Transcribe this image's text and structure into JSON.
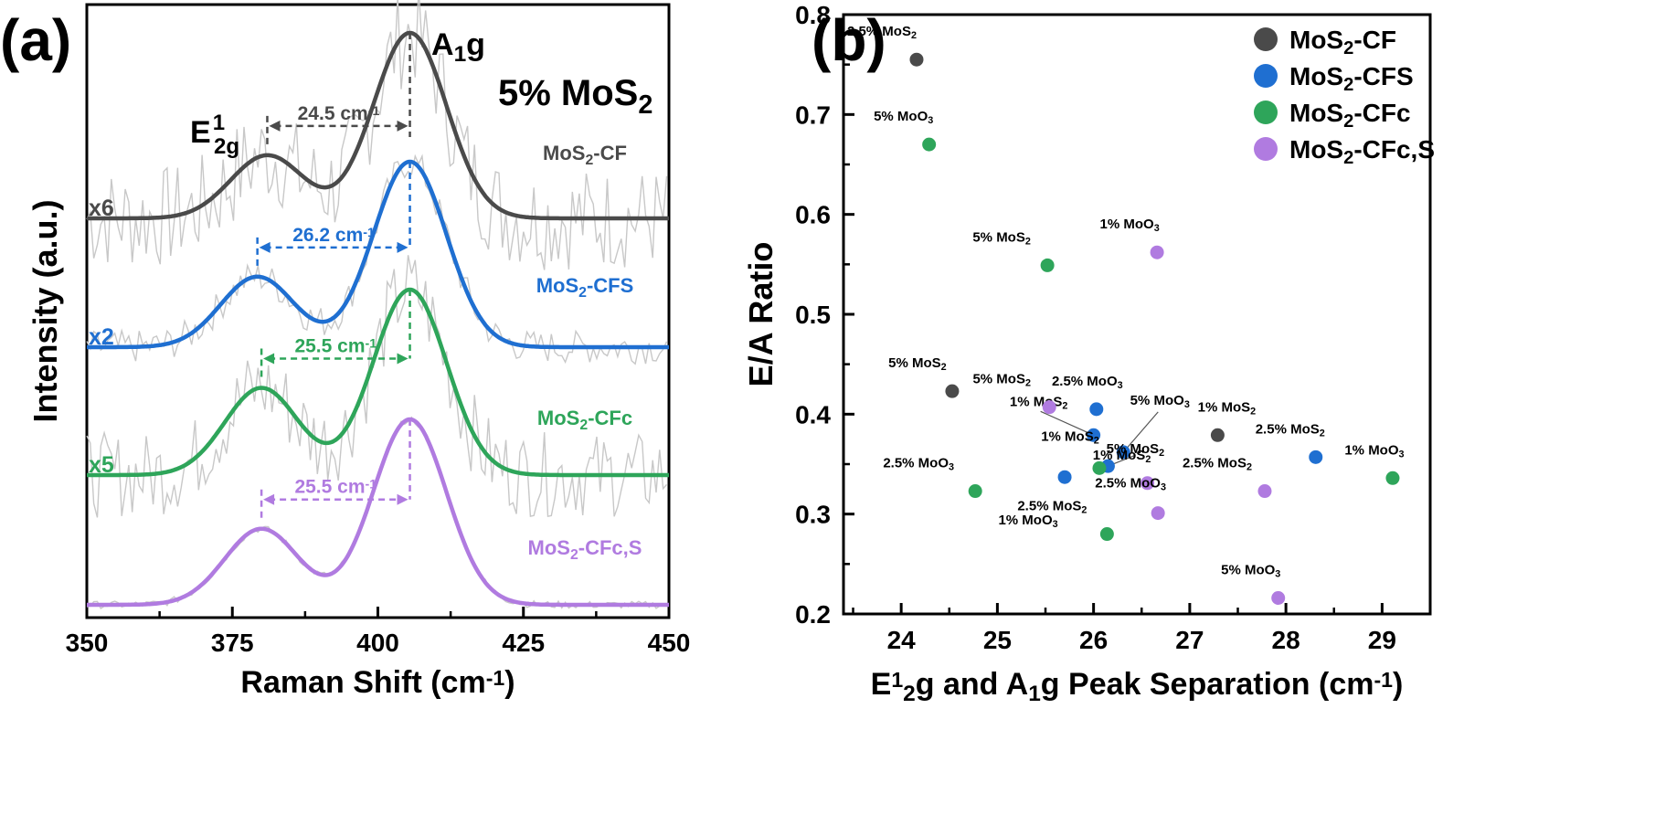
{
  "figure": {
    "panel_a_label": "(a)",
    "panel_b_label": "(b)"
  },
  "chart_data": [
    {
      "type": "line",
      "panel": "(a)",
      "xlabel": "Raman Shift (cm⁻¹)",
      "ylabel": "Intensity (a.u.)",
      "xlim": [
        350,
        450
      ],
      "xticks": [
        350,
        375,
        400,
        425,
        450
      ],
      "title": "5% MoS₂",
      "peak_labels": {
        "e2g": "E¹₂g",
        "a1g": "A₁g"
      },
      "series": [
        {
          "name": "MoS₂-CF",
          "multiplier": "x6",
          "color": "#4a4a4a",
          "e2g_position": 381.0,
          "a1g_position": 405.5,
          "e2g_rel_height": 0.34,
          "separation_label": "24.5 cm⁻¹"
        },
        {
          "name": "MoS₂-CFS",
          "multiplier": "x2",
          "color": "#1f6fd1",
          "e2g_position": 379.3,
          "a1g_position": 405.5,
          "e2g_rel_height": 0.38,
          "separation_label": "26.2 cm⁻¹"
        },
        {
          "name": "MoS₂-CFc",
          "multiplier": "x5",
          "color": "#2ea55a",
          "e2g_position": 380.0,
          "a1g_position": 405.5,
          "e2g_rel_height": 0.47,
          "separation_label": "25.5 cm⁻¹"
        },
        {
          "name": "MoS₂-CFc,S",
          "multiplier": "",
          "color": "#b07be0",
          "e2g_position": 380.0,
          "a1g_position": 405.5,
          "e2g_rel_height": 0.41,
          "separation_label": "25.5 cm⁻¹"
        }
      ]
    },
    {
      "type": "scatter",
      "panel": "(b)",
      "xlabel": "E¹₂g and A₁g Peak Separation (cm⁻¹)",
      "ylabel": "E/A Ratio",
      "xlim": [
        23.4,
        29.5
      ],
      "ylim": [
        0.2,
        0.8
      ],
      "xticks": [
        24,
        25,
        26,
        27,
        28,
        29
      ],
      "yticks": [
        0.2,
        0.3,
        0.4,
        0.5,
        0.6,
        0.7,
        0.8
      ],
      "legend_position": "top-right",
      "series": [
        {
          "name": "MoS₂-CF",
          "color": "#4a4a4a",
          "points": [
            {
              "x": 24.16,
              "y": 0.755,
              "label": "2.5% MoS₂"
            },
            {
              "x": 24.53,
              "y": 0.423,
              "label": "5% MoS₂"
            },
            {
              "x": 27.29,
              "y": 0.379,
              "label": "1% MoS₂"
            }
          ]
        },
        {
          "name": "MoS₂-CFS",
          "color": "#1f6fd1",
          "points": [
            {
              "x": 26.03,
              "y": 0.405,
              "label": "2.5% MoO₃"
            },
            {
              "x": 26.0,
              "y": 0.379,
              "label": "1% MoS₂"
            },
            {
              "x": 26.31,
              "y": 0.362,
              "label": "5% MoO₃"
            },
            {
              "x": 26.15,
              "y": 0.348,
              "label": "5% MoS₂"
            },
            {
              "x": 25.7,
              "y": 0.337,
              "label": "1% MoO₃"
            },
            {
              "x": 28.31,
              "y": 0.357,
              "label": "2.5% MoS₂"
            }
          ]
        },
        {
          "name": "MoS₂-CFc",
          "color": "#2ea55a",
          "points": [
            {
              "x": 24.29,
              "y": 0.67,
              "label": "5% MoO₃"
            },
            {
              "x": 25.52,
              "y": 0.549,
              "label": "5% MoS₂"
            },
            {
              "x": 26.06,
              "y": 0.346,
              "label": "1% MoS₂"
            },
            {
              "x": 24.77,
              "y": 0.323,
              "label": "2.5% MoO₃"
            },
            {
              "x": 26.14,
              "y": 0.28,
              "label": "2.5% MoS₂"
            },
            {
              "x": 29.11,
              "y": 0.336,
              "label": "1% MoO₃"
            }
          ]
        },
        {
          "name": "MoS₂-CFc,S",
          "color": "#b07be0",
          "points": [
            {
              "x": 26.66,
              "y": 0.562,
              "label": "1% MoO₃"
            },
            {
              "x": 25.54,
              "y": 0.407,
              "label": "5% MoS₂"
            },
            {
              "x": 26.56,
              "y": 0.331,
              "label": "1% MoS₂"
            },
            {
              "x": 26.67,
              "y": 0.301,
              "label": "2.5% MoO₃"
            },
            {
              "x": 27.78,
              "y": 0.323,
              "label": "2.5% MoS₂"
            },
            {
              "x": 27.92,
              "y": 0.216,
              "label": "5% MoO₃"
            }
          ]
        }
      ]
    }
  ]
}
